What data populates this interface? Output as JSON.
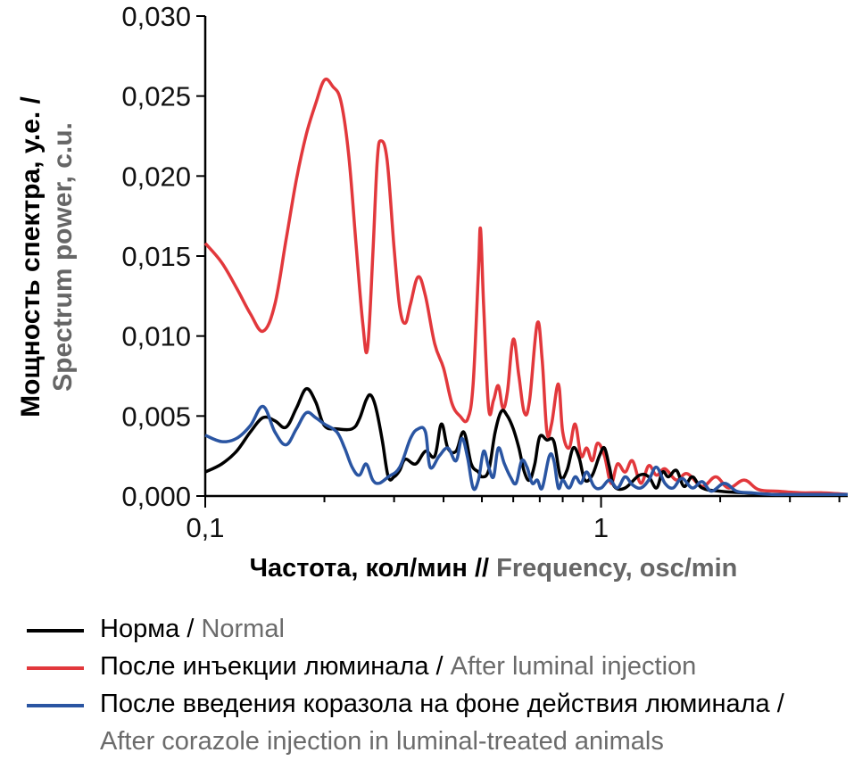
{
  "colors": {
    "normal": "#000000",
    "luminal": "#e2383c",
    "corazole": "#2a55a2",
    "secondary_text": "#6b6b6b"
  },
  "axes": {
    "ylabel_ru": "Мощность спектра, у.е. /",
    "ylabel_en": "Spectrum power, c.u.",
    "xlabel_ru": "Частота, кол/мин //",
    "xlabel_en": "Frequency, osc/min",
    "yticks": [
      "0,000",
      "0,005",
      "0,010",
      "0,015",
      "0,020",
      "0,025",
      "0,030"
    ],
    "xticks": [
      "0,1",
      "1"
    ]
  },
  "legend": [
    {
      "ru": "Норма /",
      "en": "Normal"
    },
    {
      "ru": "После инъекции люминала /",
      "en": "After luminal injection"
    },
    {
      "ru": "После введения коразола на фоне действия люминала /",
      "en": "After corazole injection in luminal-treated animals"
    }
  ],
  "chart_data": {
    "type": "line",
    "x_scale": "log",
    "xlim": [
      0.1,
      4.2
    ],
    "ylim": [
      0,
      0.03
    ],
    "xlabel": "Частота, кол/мин // Frequency, osc/min",
    "ylabel": "Мощность спектра, у.е. / Spectrum power, c.u.",
    "grid": false,
    "legend_position": "bottom",
    "series": [
      {
        "name": "Норма / Normal",
        "color": "#000000",
        "points": [
          [
            0.1,
            0.0015
          ],
          [
            0.11,
            0.002
          ],
          [
            0.12,
            0.0028
          ],
          [
            0.13,
            0.004
          ],
          [
            0.14,
            0.0049
          ],
          [
            0.15,
            0.0047
          ],
          [
            0.16,
            0.0043
          ],
          [
            0.17,
            0.0055
          ],
          [
            0.18,
            0.0067
          ],
          [
            0.19,
            0.0059
          ],
          [
            0.2,
            0.0044
          ],
          [
            0.215,
            0.0042
          ],
          [
            0.235,
            0.0042
          ],
          [
            0.245,
            0.0048
          ],
          [
            0.255,
            0.006
          ],
          [
            0.262,
            0.0063
          ],
          [
            0.27,
            0.0055
          ],
          [
            0.28,
            0.0035
          ],
          [
            0.29,
            0.0012
          ],
          [
            0.3,
            0.0012
          ],
          [
            0.31,
            0.0016
          ],
          [
            0.32,
            0.0023
          ],
          [
            0.34,
            0.002
          ],
          [
            0.36,
            0.0028
          ],
          [
            0.38,
            0.0025
          ],
          [
            0.395,
            0.0045
          ],
          [
            0.41,
            0.003
          ],
          [
            0.43,
            0.0028
          ],
          [
            0.45,
            0.004
          ],
          [
            0.47,
            0.002
          ],
          [
            0.49,
            0.0015
          ],
          [
            0.5,
            0.0012
          ],
          [
            0.52,
            0.0016
          ],
          [
            0.54,
            0.004
          ],
          [
            0.56,
            0.0053
          ],
          [
            0.58,
            0.005
          ],
          [
            0.6,
            0.0042
          ],
          [
            0.62,
            0.003
          ],
          [
            0.64,
            0.0015
          ],
          [
            0.66,
            0.001
          ],
          [
            0.68,
            0.002
          ],
          [
            0.7,
            0.0037
          ],
          [
            0.73,
            0.0035
          ],
          [
            0.76,
            0.0034
          ],
          [
            0.79,
            0.0012
          ],
          [
            0.82,
            0.0016
          ],
          [
            0.85,
            0.003
          ],
          [
            0.88,
            0.0024
          ],
          [
            0.91,
            0.001
          ],
          [
            0.95,
            0.0013
          ],
          [
            0.99,
            0.0025
          ],
          [
            1.02,
            0.003
          ],
          [
            1.05,
            0.0018
          ],
          [
            1.08,
            0.0006
          ],
          [
            1.15,
            0.0005
          ],
          [
            1.25,
            0.0013
          ],
          [
            1.32,
            0.0012
          ],
          [
            1.38,
            0.0005
          ],
          [
            1.43,
            0.0015
          ],
          [
            1.48,
            0.0012
          ],
          [
            1.55,
            0.0016
          ],
          [
            1.62,
            0.0006
          ],
          [
            1.7,
            0.0012
          ],
          [
            1.8,
            0.0005
          ],
          [
            2.0,
            0.0003
          ],
          [
            2.3,
            0.0002
          ],
          [
            2.7,
            0.0001
          ],
          [
            3.2,
            0.0001
          ],
          [
            4.2,
            0.0001
          ]
        ]
      },
      {
        "name": "После инъекции люминала / After luminal injection",
        "color": "#e2383c",
        "points": [
          [
            0.1,
            0.0158
          ],
          [
            0.11,
            0.0146
          ],
          [
            0.12,
            0.013
          ],
          [
            0.13,
            0.0114
          ],
          [
            0.14,
            0.0103
          ],
          [
            0.15,
            0.012
          ],
          [
            0.16,
            0.016
          ],
          [
            0.17,
            0.0198
          ],
          [
            0.18,
            0.0226
          ],
          [
            0.19,
            0.0245
          ],
          [
            0.2,
            0.026
          ],
          [
            0.21,
            0.0256
          ],
          [
            0.22,
            0.0247
          ],
          [
            0.23,
            0.0215
          ],
          [
            0.24,
            0.016
          ],
          [
            0.25,
            0.0108
          ],
          [
            0.257,
            0.0092
          ],
          [
            0.265,
            0.015
          ],
          [
            0.272,
            0.021
          ],
          [
            0.278,
            0.0222
          ],
          [
            0.288,
            0.021
          ],
          [
            0.3,
            0.0155
          ],
          [
            0.31,
            0.0118
          ],
          [
            0.32,
            0.0108
          ],
          [
            0.33,
            0.012
          ],
          [
            0.345,
            0.0137
          ],
          [
            0.36,
            0.0125
          ],
          [
            0.38,
            0.0095
          ],
          [
            0.4,
            0.008
          ],
          [
            0.42,
            0.0058
          ],
          [
            0.44,
            0.005
          ],
          [
            0.46,
            0.0048
          ],
          [
            0.475,
            0.007
          ],
          [
            0.49,
            0.014
          ],
          [
            0.496,
            0.0167
          ],
          [
            0.505,
            0.012
          ],
          [
            0.52,
            0.0055
          ],
          [
            0.535,
            0.006
          ],
          [
            0.55,
            0.0069
          ],
          [
            0.565,
            0.0055
          ],
          [
            0.58,
            0.0065
          ],
          [
            0.6,
            0.0098
          ],
          [
            0.62,
            0.0075
          ],
          [
            0.64,
            0.0052
          ],
          [
            0.66,
            0.006
          ],
          [
            0.69,
            0.0108
          ],
          [
            0.71,
            0.0085
          ],
          [
            0.73,
            0.004
          ],
          [
            0.75,
            0.0045
          ],
          [
            0.78,
            0.007
          ],
          [
            0.8,
            0.004
          ],
          [
            0.83,
            0.003
          ],
          [
            0.86,
            0.0045
          ],
          [
            0.89,
            0.0025
          ],
          [
            0.92,
            0.003
          ],
          [
            0.95,
            0.0022
          ],
          [
            0.98,
            0.0033
          ],
          [
            1.02,
            0.0025
          ],
          [
            1.06,
            0.0008
          ],
          [
            1.1,
            0.002
          ],
          [
            1.15,
            0.0015
          ],
          [
            1.2,
            0.0022
          ],
          [
            1.26,
            0.0008
          ],
          [
            1.32,
            0.0019
          ],
          [
            1.38,
            0.0013
          ],
          [
            1.45,
            0.0017
          ],
          [
            1.55,
            0.001
          ],
          [
            1.65,
            0.0014
          ],
          [
            1.8,
            0.0006
          ],
          [
            1.95,
            0.0012
          ],
          [
            2.1,
            0.0005
          ],
          [
            2.3,
            0.001
          ],
          [
            2.5,
            0.0004
          ],
          [
            2.8,
            0.0003
          ],
          [
            3.2,
            0.0002
          ],
          [
            3.6,
            0.0002
          ],
          [
            4.2,
            0.0001
          ]
        ]
      },
      {
        "name": "После введения коразола на фоне действия люминала / After corazole injection in luminal-treated animals",
        "color": "#2a55a2",
        "points": [
          [
            0.1,
            0.0038
          ],
          [
            0.11,
            0.0034
          ],
          [
            0.12,
            0.0036
          ],
          [
            0.13,
            0.0044
          ],
          [
            0.14,
            0.0056
          ],
          [
            0.15,
            0.004
          ],
          [
            0.16,
            0.0032
          ],
          [
            0.17,
            0.0042
          ],
          [
            0.18,
            0.0052
          ],
          [
            0.19,
            0.0049
          ],
          [
            0.2,
            0.0045
          ],
          [
            0.215,
            0.004
          ],
          [
            0.225,
            0.003
          ],
          [
            0.235,
            0.0018
          ],
          [
            0.245,
            0.0013
          ],
          [
            0.255,
            0.002
          ],
          [
            0.265,
            0.001
          ],
          [
            0.275,
            0.0008
          ],
          [
            0.29,
            0.0012
          ],
          [
            0.31,
            0.0018
          ],
          [
            0.33,
            0.0036
          ],
          [
            0.345,
            0.0042
          ],
          [
            0.36,
            0.004
          ],
          [
            0.37,
            0.0018
          ],
          [
            0.39,
            0.0025
          ],
          [
            0.41,
            0.003
          ],
          [
            0.43,
            0.0022
          ],
          [
            0.445,
            0.0036
          ],
          [
            0.46,
            0.0024
          ],
          [
            0.475,
            0.0005
          ],
          [
            0.49,
            0.001
          ],
          [
            0.505,
            0.0028
          ],
          [
            0.52,
            0.0018
          ],
          [
            0.535,
            0.0012
          ],
          [
            0.55,
            0.003
          ],
          [
            0.57,
            0.002
          ],
          [
            0.59,
            0.0012
          ],
          [
            0.61,
            0.0008
          ],
          [
            0.63,
            0.0022
          ],
          [
            0.65,
            0.0018
          ],
          [
            0.67,
            0.0008
          ],
          [
            0.69,
            0.001
          ],
          [
            0.71,
            0.0005
          ],
          [
            0.74,
            0.0025
          ],
          [
            0.76,
            0.0022
          ],
          [
            0.78,
            0.0005
          ],
          [
            0.8,
            0.001
          ],
          [
            0.83,
            0.0005
          ],
          [
            0.86,
            0.0012
          ],
          [
            0.89,
            0.0008
          ],
          [
            0.92,
            0.0015
          ],
          [
            0.96,
            0.0006
          ],
          [
            1.0,
            0.0005
          ],
          [
            1.05,
            0.001
          ],
          [
            1.1,
            0.0005
          ],
          [
            1.15,
            0.0012
          ],
          [
            1.2,
            0.0007
          ],
          [
            1.26,
            0.0005
          ],
          [
            1.32,
            0.001
          ],
          [
            1.38,
            0.0018
          ],
          [
            1.45,
            0.0008
          ],
          [
            1.52,
            0.0005
          ],
          [
            1.6,
            0.0011
          ],
          [
            1.7,
            0.0005
          ],
          [
            1.8,
            0.0009
          ],
          [
            1.9,
            0.0003
          ],
          [
            2.05,
            0.0008
          ],
          [
            2.2,
            0.0003
          ],
          [
            2.4,
            0.0002
          ],
          [
            2.7,
            0.0001
          ],
          [
            3.2,
            0.0001
          ],
          [
            4.2,
            0.0001
          ]
        ]
      }
    ]
  }
}
